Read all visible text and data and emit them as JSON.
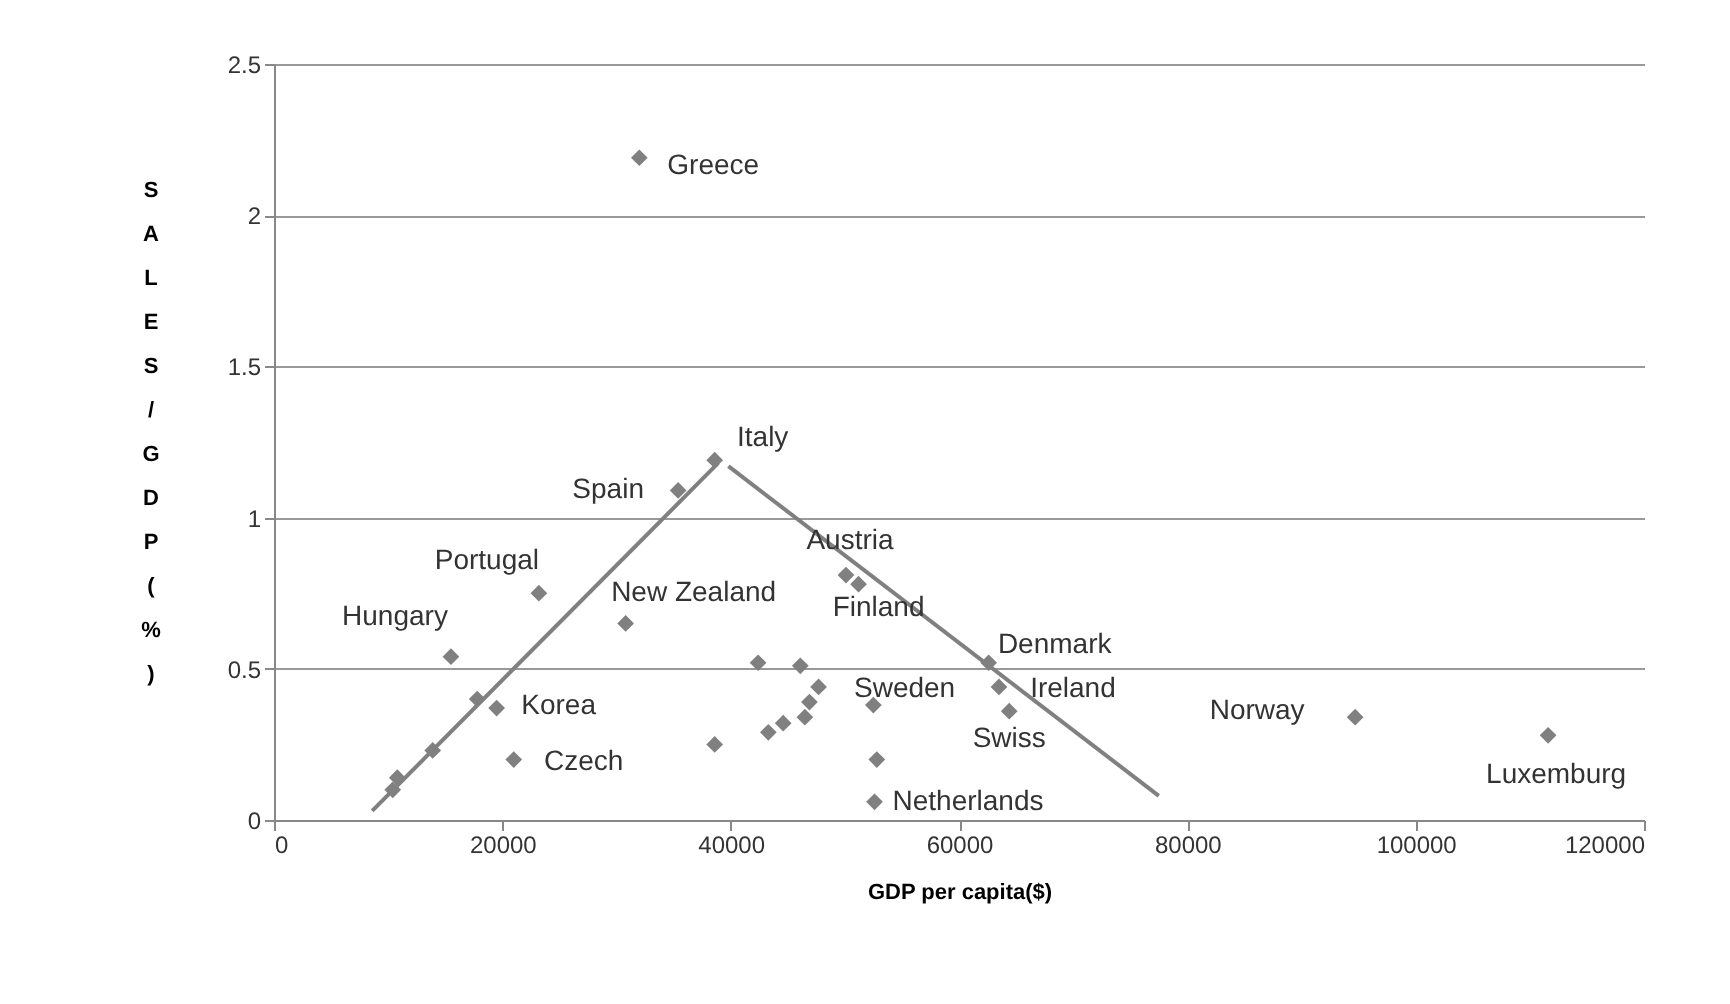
{
  "chart_data": {
    "type": "scatter",
    "xlabel": "GDP per capita($)",
    "ylabel": "SALES/GDP(%)",
    "xlim": [
      0,
      120000
    ],
    "ylim": [
      0,
      2.5
    ],
    "xticks": [
      0,
      20000,
      40000,
      60000,
      80000,
      100000,
      120000
    ],
    "yticks": [
      0,
      0.5,
      1,
      1.5,
      2,
      2.5
    ],
    "grid": "y",
    "series": [
      {
        "marker": "diamond",
        "color": "#808080",
        "value_labels": [
          "Greece",
          "Italy",
          "Spain",
          "Portugal",
          "New Zealand",
          "Hungary",
          null,
          "Korea",
          "Czech",
          null,
          null,
          null,
          null,
          null,
          null,
          "Sweden",
          null,
          null,
          null,
          null,
          "Austria",
          "Finland",
          null,
          null,
          "Netherlands",
          "Denmark",
          "Ireland",
          "Swiss",
          "Norway",
          "Luxemburg"
        ],
        "x": [
          32000,
          38600,
          35400,
          23200,
          30800,
          15500,
          17800,
          19500,
          21000,
          13900,
          10800,
          10400,
          38600,
          42400,
          46100,
          47700,
          46900,
          46500,
          44600,
          43300,
          50100,
          51200,
          52500,
          52800,
          52600,
          62600,
          63500,
          64400,
          94700,
          111600
        ],
        "values": [
          2.19,
          1.19,
          1.09,
          0.75,
          0.65,
          0.54,
          0.4,
          0.37,
          0.2,
          0.23,
          0.14,
          0.1,
          0.25,
          0.52,
          0.51,
          0.44,
          0.39,
          0.34,
          0.32,
          0.29,
          0.81,
          0.78,
          0.38,
          0.2,
          0.06,
          0.52,
          0.44,
          0.36,
          0.34,
          0.28
        ]
      },
      {
        "type": "line",
        "color": "#808080",
        "x": [
          8600,
          38900
        ],
        "values": [
          0.03,
          1.18
        ]
      },
      {
        "type": "line",
        "color": "#808080",
        "x": [
          39800,
          77500
        ],
        "values": [
          1.17,
          0.08
        ]
      }
    ]
  }
}
